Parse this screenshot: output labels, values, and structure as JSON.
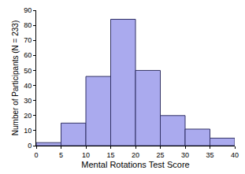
{
  "chart_data": {
    "type": "histogram",
    "x_label": "Mental Rotations Test Score",
    "y_label": "Number of Participants (N = 233)",
    "bins": [
      0,
      5,
      10,
      15,
      20,
      25,
      30,
      35,
      40
    ],
    "values": [
      2,
      15,
      46,
      84,
      50,
      20,
      11,
      5
    ],
    "color": "#aaaaee",
    "xlim": [
      0,
      40
    ],
    "xticks": [
      0,
      5,
      10,
      15,
      20,
      25,
      30,
      35,
      40
    ],
    "ylim": [
      0,
      90
    ],
    "yticks": [
      0,
      10,
      20,
      30,
      40,
      50,
      60,
      70,
      80,
      90
    ],
    "grid": false
  }
}
